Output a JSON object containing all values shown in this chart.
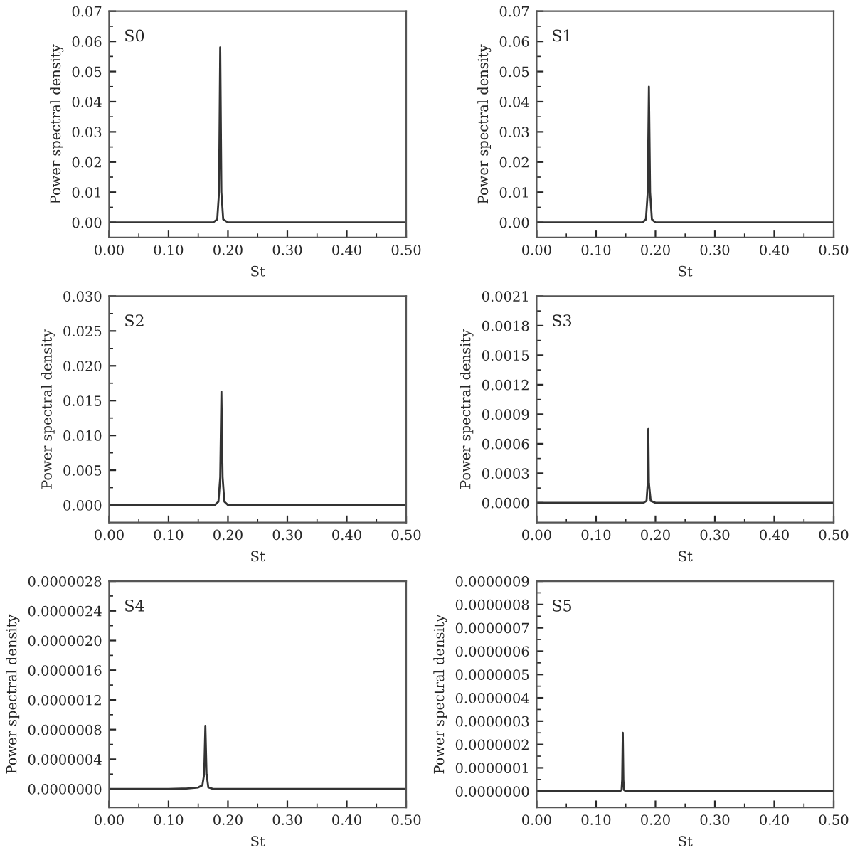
{
  "chart_data": [
    {
      "type": "line",
      "xlabel": "St",
      "ylabel": "Power spectral density",
      "annotations": [
        "S0"
      ],
      "x": [
        0,
        0.1,
        0.175,
        0.182,
        0.185,
        0.187,
        0.189,
        0.192,
        0.2,
        0.3,
        0.5
      ],
      "series": [
        {
          "color": "#333333",
          "values": [
            0,
            0,
            0,
            0.001,
            0.01,
            0.058,
            0.01,
            0.001,
            0,
            0,
            0
          ]
        }
      ],
      "xlim": [
        0,
        0.5
      ],
      "xticks": [
        {
          "value": 0,
          "label": "0.00"
        },
        {
          "value": 0.1,
          "label": "0.10"
        },
        {
          "value": 0.2,
          "label": "0.20"
        },
        {
          "value": 0.3,
          "label": "0.30"
        },
        {
          "value": 0.4,
          "label": "0.40"
        },
        {
          "value": 0.5,
          "label": "0.50"
        }
      ],
      "ylim": [
        -0.005,
        0.07
      ],
      "yticks": [
        {
          "value": 0,
          "label": "0.00"
        },
        {
          "value": 0.01,
          "label": "0.01"
        },
        {
          "value": 0.02,
          "label": "0.02"
        },
        {
          "value": 0.03,
          "label": "0.03"
        },
        {
          "value": 0.04,
          "label": "0.04"
        },
        {
          "value": 0.05,
          "label": "0.05"
        },
        {
          "value": 0.06,
          "label": "0.06"
        },
        {
          "value": 0.07,
          "label": "0.07"
        }
      ]
    },
    {
      "type": "line",
      "xlabel": "St",
      "ylabel": "Power spectral density",
      "annotations": [
        "S1"
      ],
      "x": [
        0,
        0.1,
        0.178,
        0.184,
        0.187,
        0.189,
        0.191,
        0.194,
        0.2,
        0.3,
        0.5
      ],
      "series": [
        {
          "color": "#333333",
          "values": [
            0,
            0,
            0,
            0.001,
            0.01,
            0.045,
            0.01,
            0.001,
            0,
            0,
            0
          ]
        }
      ],
      "xlim": [
        0,
        0.5
      ],
      "xticks": [
        {
          "value": 0,
          "label": "0.00"
        },
        {
          "value": 0.1,
          "label": "0.10"
        },
        {
          "value": 0.2,
          "label": "0.20"
        },
        {
          "value": 0.3,
          "label": "0.30"
        },
        {
          "value": 0.4,
          "label": "0.40"
        },
        {
          "value": 0.5,
          "label": "0.50"
        }
      ],
      "ylim": [
        -0.005,
        0.07
      ],
      "yticks": [
        {
          "value": 0,
          "label": "0.00"
        },
        {
          "value": 0.01,
          "label": "0.01"
        },
        {
          "value": 0.02,
          "label": "0.02"
        },
        {
          "value": 0.03,
          "label": "0.03"
        },
        {
          "value": 0.04,
          "label": "0.04"
        },
        {
          "value": 0.05,
          "label": "0.05"
        },
        {
          "value": 0.06,
          "label": "0.06"
        },
        {
          "value": 0.07,
          "label": "0.07"
        }
      ]
    },
    {
      "type": "line",
      "xlabel": "St",
      "ylabel": "Power spectral density",
      "annotations": [
        "S2"
      ],
      "x": [
        0,
        0.1,
        0.178,
        0.184,
        0.187,
        0.189,
        0.191,
        0.194,
        0.2,
        0.3,
        0.5
      ],
      "series": [
        {
          "color": "#333333",
          "values": [
            0,
            0,
            0,
            0.0005,
            0.004,
            0.0163,
            0.004,
            0.0005,
            0,
            0,
            0
          ]
        }
      ],
      "xlim": [
        0,
        0.5
      ],
      "xticks": [
        {
          "value": 0,
          "label": "0.00"
        },
        {
          "value": 0.1,
          "label": "0.10"
        },
        {
          "value": 0.2,
          "label": "0.20"
        },
        {
          "value": 0.3,
          "label": "0.30"
        },
        {
          "value": 0.4,
          "label": "0.40"
        },
        {
          "value": 0.5,
          "label": "0.50"
        }
      ],
      "ylim": [
        -0.0025,
        0.03
      ],
      "yticks": [
        {
          "value": 0,
          "label": "0.000"
        },
        {
          "value": 0.005,
          "label": "0.005"
        },
        {
          "value": 0.01,
          "label": "0.010"
        },
        {
          "value": 0.015,
          "label": "0.015"
        },
        {
          "value": 0.02,
          "label": "0.020"
        },
        {
          "value": 0.025,
          "label": "0.025"
        },
        {
          "value": 0.03,
          "label": "0.030"
        }
      ]
    },
    {
      "type": "line",
      "xlabel": "St",
      "ylabel": "Power spectral density",
      "annotations": [
        "S3"
      ],
      "x": [
        0,
        0.1,
        0.18,
        0.185,
        0.187,
        0.188,
        0.189,
        0.192,
        0.2,
        0.3,
        0.5
      ],
      "series": [
        {
          "color": "#333333",
          "values": [
            0,
            0,
            0,
            2e-05,
            0.0002,
            0.00075,
            0.0002,
            2e-05,
            0,
            0,
            0
          ]
        }
      ],
      "xlim": [
        0,
        0.5
      ],
      "xticks": [
        {
          "value": 0,
          "label": "0.00"
        },
        {
          "value": 0.1,
          "label": "0.10"
        },
        {
          "value": 0.2,
          "label": "0.20"
        },
        {
          "value": 0.3,
          "label": "0.30"
        },
        {
          "value": 0.4,
          "label": "0.40"
        },
        {
          "value": 0.5,
          "label": "0.50"
        }
      ],
      "ylim": [
        -0.0002,
        0.0021
      ],
      "yticks": [
        {
          "value": 0,
          "label": "0.0000"
        },
        {
          "value": 0.0003,
          "label": "0.0003"
        },
        {
          "value": 0.0006,
          "label": "0.0006"
        },
        {
          "value": 0.0009,
          "label": "0.0009"
        },
        {
          "value": 0.0012,
          "label": "0.0012"
        },
        {
          "value": 0.0015,
          "label": "0.0015"
        },
        {
          "value": 0.0018,
          "label": "0.0018"
        },
        {
          "value": 0.0021,
          "label": "0.0021"
        }
      ]
    },
    {
      "type": "line",
      "xlabel": "St",
      "ylabel": "Power spectral density",
      "annotations": [
        "S4"
      ],
      "x": [
        0,
        0.1,
        0.13,
        0.15,
        0.157,
        0.16,
        0.162,
        0.164,
        0.167,
        0.175,
        0.3,
        0.5
      ],
      "series": [
        {
          "color": "#333333",
          "values": [
            0,
            0,
            5e-09,
            2e-08,
            5e-08,
            2e-07,
            8.5e-07,
            2e-07,
            2e-08,
            0,
            0,
            0
          ]
        }
      ],
      "xlim": [
        0,
        0.5
      ],
      "xticks": [
        {
          "value": 0,
          "label": "0.00"
        },
        {
          "value": 0.1,
          "label": "0.10"
        },
        {
          "value": 0.2,
          "label": "0.20"
        },
        {
          "value": 0.3,
          "label": "0.30"
        },
        {
          "value": 0.4,
          "label": "0.40"
        },
        {
          "value": 0.5,
          "label": "0.50"
        }
      ],
      "ylim": [
        -2.5e-07,
        2.8e-06
      ],
      "yticks": [
        {
          "value": 0,
          "label": "0.0000000"
        },
        {
          "value": 4e-07,
          "label": "0.0000004"
        },
        {
          "value": 8e-07,
          "label": "0.0000008"
        },
        {
          "value": 1.2e-06,
          "label": "0.0000012"
        },
        {
          "value": 1.6e-06,
          "label": "0.0000016"
        },
        {
          "value": 2e-06,
          "label": "0.0000020"
        },
        {
          "value": 2.4e-06,
          "label": "0.0000024"
        },
        {
          "value": 2.8e-06,
          "label": "0.0000028"
        }
      ]
    },
    {
      "type": "line",
      "xlabel": "St",
      "ylabel": "Power spectral density",
      "annotations": [
        "S5"
      ],
      "x": [
        0,
        0.1,
        0.14,
        0.143,
        0.144,
        0.145,
        0.146,
        0.147,
        0.15,
        0.3,
        0.5
      ],
      "series": [
        {
          "color": "#333333",
          "values": [
            0,
            0,
            0,
            5e-09,
            5e-08,
            2.5e-07,
            5e-08,
            5e-09,
            0,
            0,
            0
          ]
        }
      ],
      "xlim": [
        0,
        0.5
      ],
      "xticks": [
        {
          "value": 0,
          "label": "0.00"
        },
        {
          "value": 0.1,
          "label": "0.10"
        },
        {
          "value": 0.2,
          "label": "0.20"
        },
        {
          "value": 0.3,
          "label": "0.30"
        },
        {
          "value": 0.4,
          "label": "0.40"
        },
        {
          "value": 0.5,
          "label": "0.50"
        }
      ],
      "ylim": [
        -7e-08,
        9e-07
      ],
      "yticks": [
        {
          "value": 0,
          "label": "0.0000000"
        },
        {
          "value": 1e-07,
          "label": "0.0000001"
        },
        {
          "value": 2e-07,
          "label": "0.0000002"
        },
        {
          "value": 3e-07,
          "label": "0.0000003"
        },
        {
          "value": 4e-07,
          "label": "0.0000004"
        },
        {
          "value": 5e-07,
          "label": "0.0000005"
        },
        {
          "value": 6e-07,
          "label": "0.0000006"
        },
        {
          "value": 7e-07,
          "label": "0.0000007"
        },
        {
          "value": 8e-07,
          "label": "0.0000008"
        },
        {
          "value": 9e-07,
          "label": "0.0000009"
        }
      ]
    }
  ]
}
